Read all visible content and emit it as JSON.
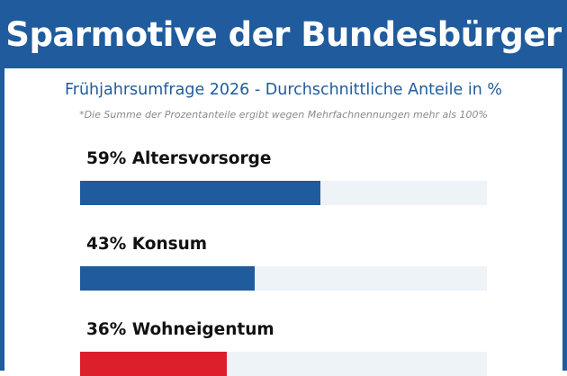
{
  "header": {
    "title": "Sparmotive der Bundesbürger",
    "subtitle": "Frühjahrsumfrage 2026 - Durchschnittliche Anteile in %",
    "footnote": "*Die Summe der Prozentanteile ergibt wegen Mehrfachnennungen mehr als 100%"
  },
  "colors": {
    "brand_blue": "#1f5b9d",
    "track": "#eef3f8",
    "highlight_red": "#dc1f2b"
  },
  "chart_data": {
    "type": "bar",
    "orientation": "horizontal",
    "unit": "%",
    "xlim": [
      0,
      100
    ],
    "categories": [
      "Altersvorsorge",
      "Konsum",
      "Wohneigentum"
    ],
    "values": [
      59,
      43,
      36
    ],
    "labels": [
      "59% Altersvorsorge",
      "43% Konsum",
      "36% Wohneigentum"
    ],
    "bar_colors": [
      "#1f5b9d",
      "#1f5b9d",
      "#dc1f2b"
    ]
  }
}
